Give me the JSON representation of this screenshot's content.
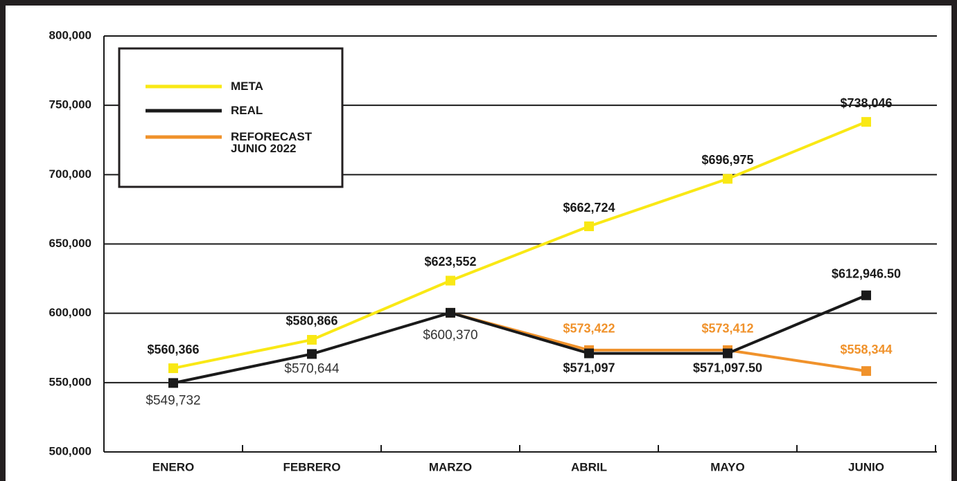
{
  "chart_data": {
    "type": "line",
    "categories": [
      "ENERO",
      "FEBRERO",
      "MARZO",
      "ABRIL",
      "MAYO",
      "JUNIO"
    ],
    "series": [
      {
        "name": "META",
        "color": "#f9e815",
        "values": [
          560366,
          580866,
          623552,
          662724,
          696975,
          738046
        ],
        "value_labels": [
          "$560,366",
          "$580,866",
          "$623,552",
          "$662,724",
          "$696,975",
          "$738,046"
        ]
      },
      {
        "name": "REAL",
        "color": "#1a1a1a",
        "values": [
          549732,
          570644,
          600370,
          571097,
          571097.5,
          612946.5
        ],
        "value_labels": [
          "$549,732",
          "$570,644",
          "$600,370",
          "$571,097",
          "$571,097.50",
          "$612,946.50"
        ]
      },
      {
        "name": "REFORECAST JUNIO 2022",
        "color": "#f0922b",
        "values": [
          null,
          null,
          600370,
          573422,
          573412,
          558344
        ],
        "value_labels": [
          null,
          null,
          null,
          "$573,422",
          "$573,412",
          "$558,344"
        ]
      }
    ],
    "ylim": [
      500000,
      800000
    ],
    "yticks": [
      {
        "value": 500000,
        "label": "500,000"
      },
      {
        "value": 550000,
        "label": "550,000"
      },
      {
        "value": 600000,
        "label": "600,000"
      },
      {
        "value": 650000,
        "label": "650,000"
      },
      {
        "value": 700000,
        "label": "700,000"
      },
      {
        "value": 750000,
        "label": "750,000"
      },
      {
        "value": 800000,
        "label": "800,000"
      }
    ],
    "grid": true,
    "legend": "upper left"
  }
}
